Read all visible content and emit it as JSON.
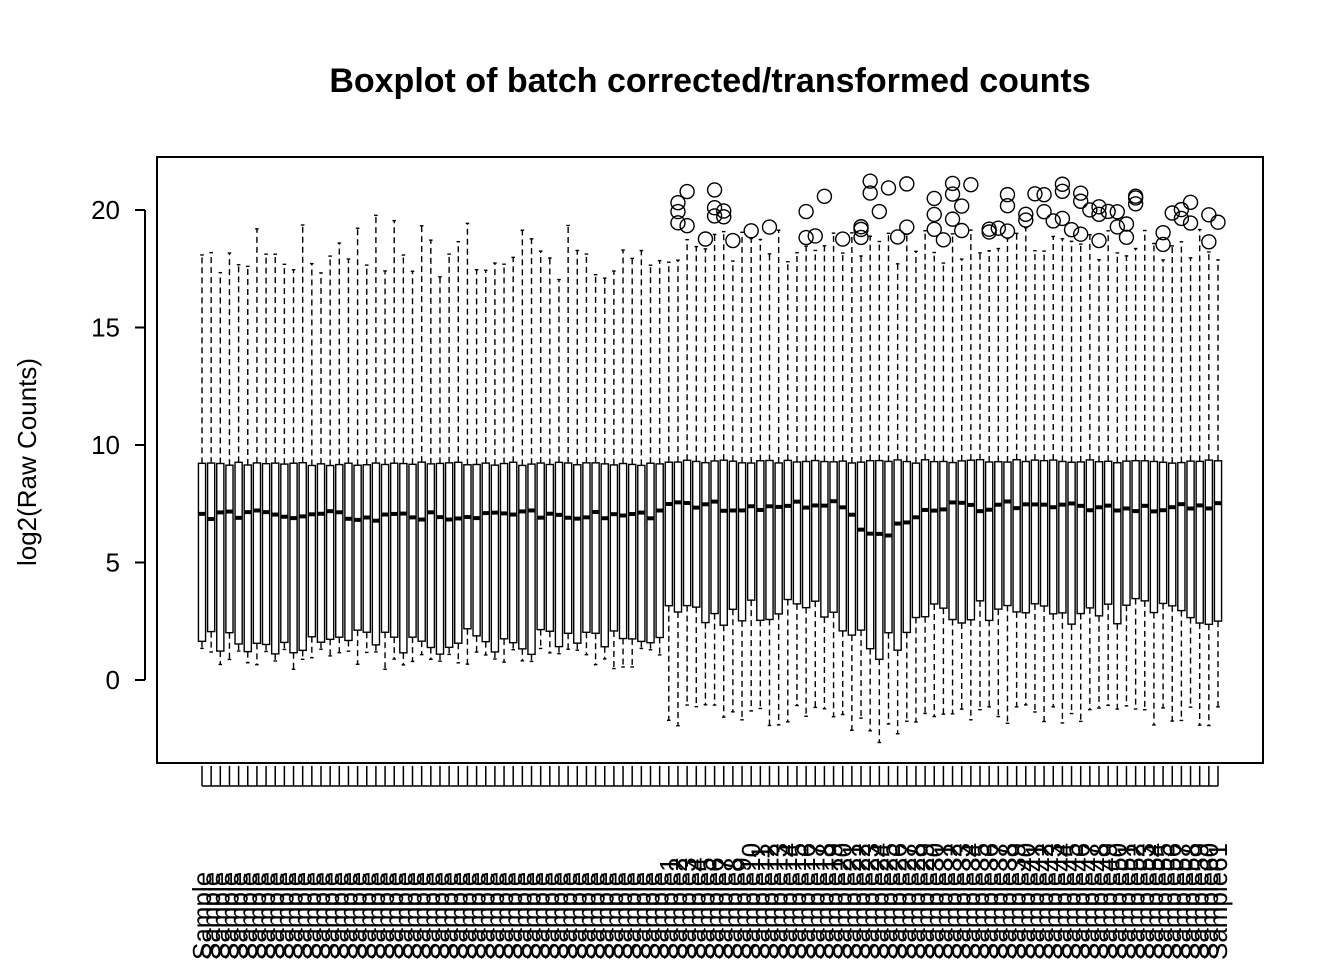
{
  "chart_data": {
    "type": "boxplot",
    "title": "Boxplot of batch corrected/transformed counts",
    "xlabel": "",
    "ylabel": "log2(Raw Counts)",
    "ylim": [
      -3.5,
      22.2
    ],
    "yticks": [
      0,
      5,
      10,
      15,
      20
    ],
    "grid": false,
    "legend": "none",
    "colors": {
      "line": "#000000",
      "box_fill": "#ffffff",
      "background": "#ffffff"
    },
    "n_samples": 112,
    "groups": [
      {
        "samples": 51,
        "median": 7.0,
        "q1": 1.6,
        "q3": 9.2,
        "whisker_low": 0.9,
        "whisker_high": 17.8,
        "outliers": "none"
      },
      {
        "samples": 61,
        "median": 7.4,
        "q1": 2.9,
        "q3": 9.3,
        "whisker_low": -1.5,
        "whisker_high": 18.5,
        "outliers": "upper, 17.8 to 21.2"
      }
    ],
    "category_labels_note": "overlapping vertical sample names, illegible"
  }
}
